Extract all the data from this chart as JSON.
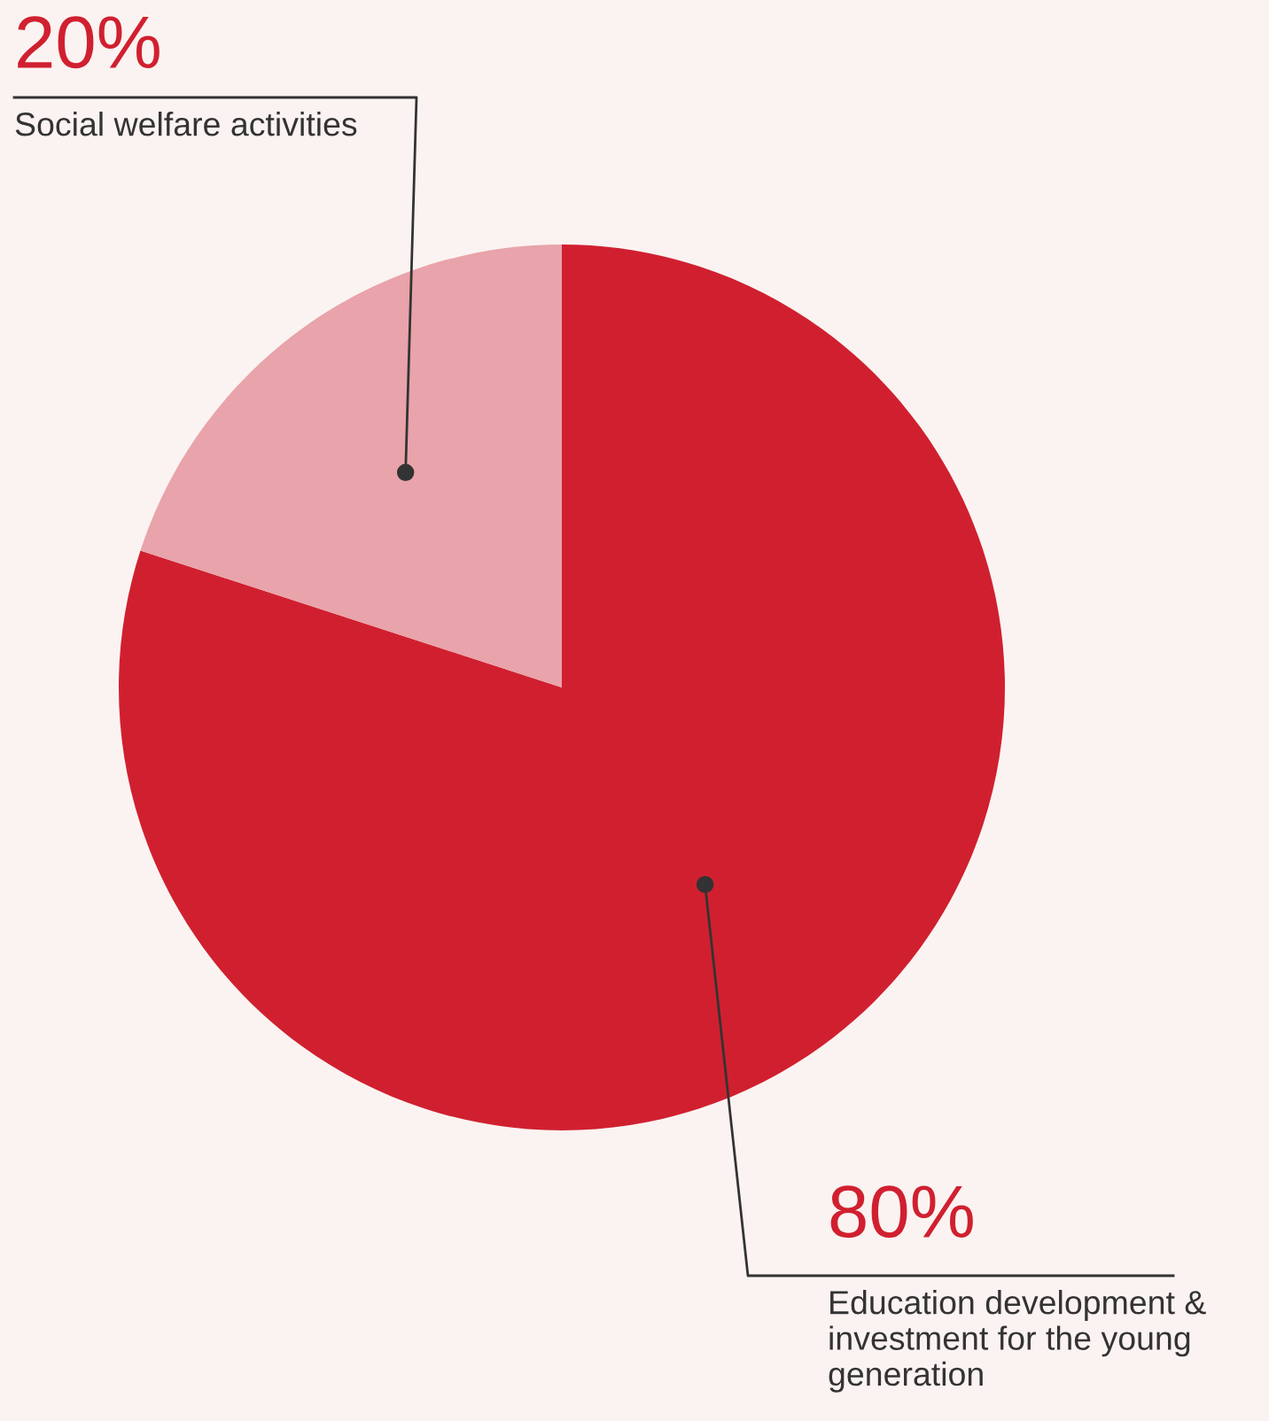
{
  "chart_data": {
    "type": "pie",
    "categories": [
      "Education development & investment for the young generation",
      "Social welfare activities"
    ],
    "values": [
      80,
      20
    ],
    "colors": [
      "#d02030",
      "#e9a3aa"
    ],
    "value_labels": [
      "80%",
      "20%"
    ]
  }
}
